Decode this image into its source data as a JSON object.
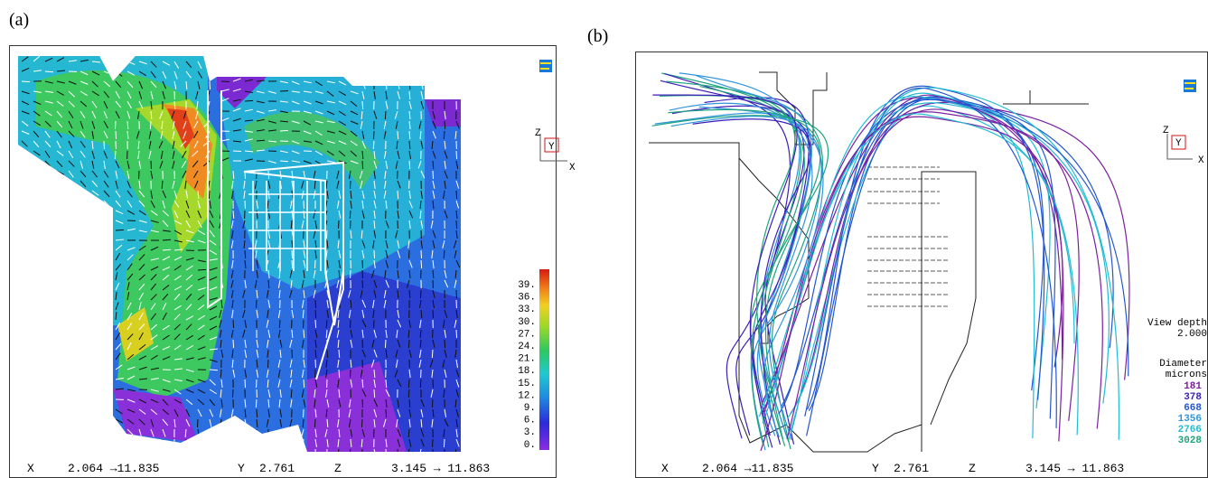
{
  "panel_a": {
    "label": "(a)",
    "axis_labels": [
      "Z",
      "Y",
      "X"
    ],
    "colorbar_labels": [
      "39.",
      "36.",
      "33.",
      "30.",
      "27.",
      "24.",
      "21.",
      "18.",
      "15.",
      "12.",
      "9.",
      "6.",
      "3.",
      "0."
    ],
    "footer": {
      "x_label": "X",
      "x_range": "2.064 →11.835",
      "y_label": "Y",
      "y_value": "2.761",
      "z_label": "Z",
      "z_range": "3.145 → 11.863"
    }
  },
  "panel_b": {
    "label": "(b)",
    "axis_labels": [
      "Z",
      "Y",
      "X"
    ],
    "view_depth_label": "View depth",
    "view_depth": "2.000",
    "legend_title": [
      "Diameter",
      "microns"
    ],
    "diameters": [
      {
        "value": "181",
        "color": "#7b1fa2"
      },
      {
        "value": "378",
        "color": "#3d1fb8"
      },
      {
        "value": "668",
        "color": "#2456d0"
      },
      {
        "value": "1356",
        "color": "#2f95dd"
      },
      {
        "value": "2766",
        "color": "#22bcd2"
      },
      {
        "value": "3028",
        "color": "#1fa47e"
      }
    ],
    "footer": {
      "x_label": "X",
      "x_range": "2.064 →11.835",
      "y_label": "Y",
      "y_value": "2.761",
      "z_label": "Z",
      "z_range": "3.145 → 11.863"
    }
  }
}
